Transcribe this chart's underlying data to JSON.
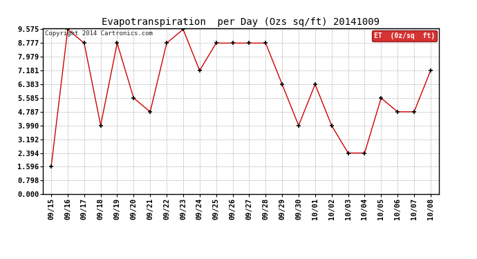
{
  "title": "Evapotranspiration  per Day (Ozs sq/ft) 20141009",
  "copyright": "Copyright 2014 Cartronics.com",
  "legend_label": "ET  (0z/sq  ft)",
  "x_labels": [
    "09/15",
    "09/16",
    "09/17",
    "09/18",
    "09/19",
    "09/20",
    "09/21",
    "09/22",
    "09/23",
    "09/24",
    "09/25",
    "09/26",
    "09/27",
    "09/28",
    "09/29",
    "09/30",
    "10/01",
    "10/02",
    "10/03",
    "10/04",
    "10/05",
    "10/06",
    "10/07",
    "10/08"
  ],
  "y_values": [
    1.596,
    9.575,
    8.777,
    4.0,
    8.777,
    5.585,
    4.787,
    8.777,
    9.575,
    7.181,
    8.777,
    8.777,
    8.777,
    8.777,
    6.383,
    3.99,
    6.383,
    3.99,
    2.394,
    2.394,
    5.585,
    4.787,
    4.787,
    7.181
  ],
  "y_ticks": [
    0.0,
    0.798,
    1.596,
    2.394,
    3.192,
    3.99,
    4.787,
    5.585,
    6.383,
    7.181,
    7.979,
    8.777,
    9.575
  ],
  "y_min": 0.0,
  "y_max": 9.575,
  "line_color": "#cc0000",
  "marker_color": "#000000",
  "grid_color": "#aaaaaa",
  "bg_color": "#ffffff",
  "legend_bg": "#cc0000",
  "legend_text_color": "#ffffff",
  "title_fontsize": 10,
  "tick_fontsize": 7.5,
  "copyright_fontsize": 6.5,
  "legend_fontsize": 7
}
